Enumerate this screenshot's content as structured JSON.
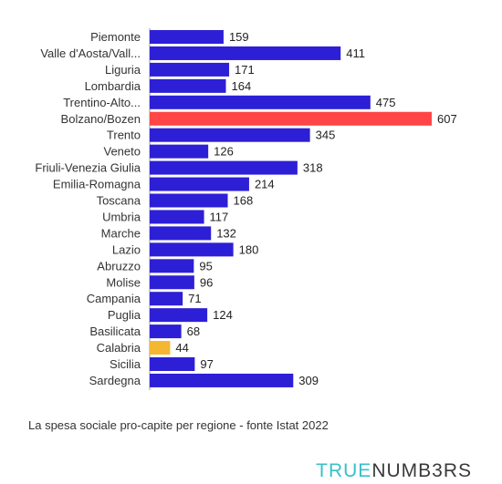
{
  "chart_data": {
    "type": "bar",
    "orientation": "horizontal",
    "categories": [
      "Piemonte",
      "Valle d'Aosta/Vall...",
      "Liguria",
      "Lombardia",
      "Trentino-Alto...",
      "Bolzano/Bozen",
      "Trento",
      "Veneto",
      "Friuli-Venezia Giulia",
      "Emilia-Romagna",
      "Toscana",
      "Umbria",
      "Marche",
      "Lazio",
      "Abruzzo",
      "Molise",
      "Campania",
      "Puglia",
      "Basilicata",
      "Calabria",
      "Sicilia",
      "Sardegna"
    ],
    "values": [
      159,
      411,
      171,
      164,
      475,
      607,
      345,
      126,
      318,
      214,
      168,
      117,
      132,
      180,
      95,
      96,
      71,
      124,
      68,
      44,
      97,
      309
    ],
    "data_labels": [
      "159",
      "411",
      "171",
      "164",
      "475",
      "607",
      "345",
      "126",
      "318",
      "214",
      "168",
      "117",
      "132",
      "180",
      "95",
      "96",
      "71",
      "124",
      "68",
      "44",
      "97",
      "309"
    ],
    "colors": {
      "default": "#2d1fd6",
      "highlight_max": "#ff4545",
      "highlight_min": "#f5b731"
    },
    "highlight": {
      "Bolzano/Bozen": "highlight_max",
      "Calabria": "highlight_min"
    },
    "xlim": [
      0,
      607
    ],
    "grid": false,
    "legend": "none"
  },
  "caption": "La spesa sociale pro-capite per regione - fonte Istat 2022",
  "brand": {
    "part1": "TRUE",
    "part2": "NUMB3RS"
  }
}
